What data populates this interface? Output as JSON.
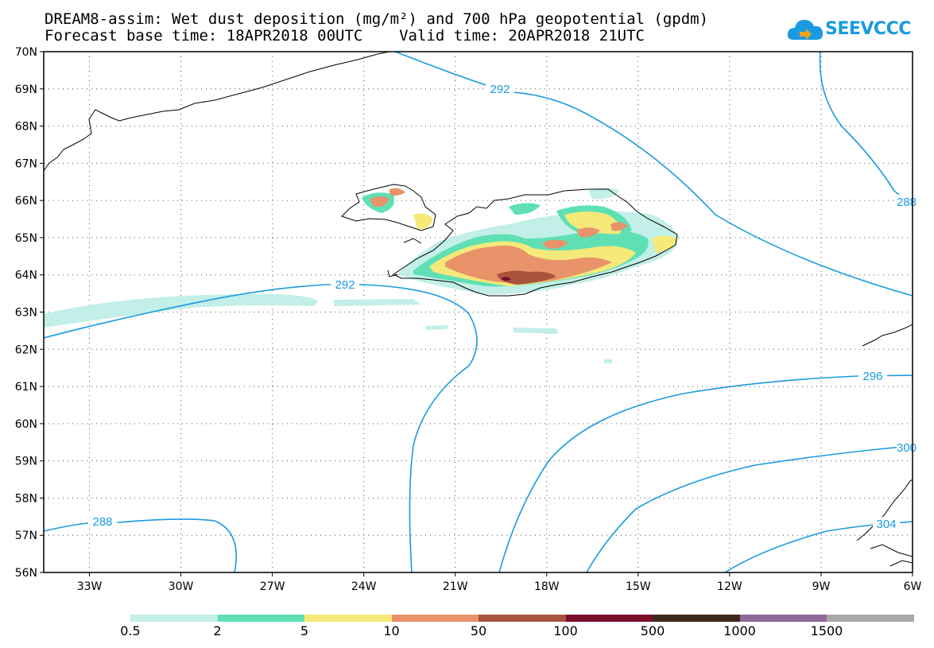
{
  "title_line1": "DREAM8-assim: Wet dust deposition (mg/m²) and 700 hPa geopotential (gpdm)",
  "title_line2": "Forecast base time: 18APR2018 00UTC    Valid time: 20APR2018 21UTC",
  "logo_text": "SEEVCCC",
  "map": {
    "lon_range": [
      -34.5,
      -6
    ],
    "lat_range": [
      56,
      70
    ],
    "lon_ticks": [
      "33W",
      "30W",
      "27W",
      "24W",
      "21W",
      "18W",
      "15W",
      "12W",
      "9W",
      "6W"
    ],
    "lat_ticks": [
      "70N",
      "69N",
      "68N",
      "67N",
      "66N",
      "65N",
      "64N",
      "63N",
      "62N",
      "61N",
      "60N",
      "59N",
      "58N",
      "57N",
      "56N"
    ],
    "gridlines": "dotted",
    "contour_color": "#1a9ae0",
    "contour_labels": [
      "292",
      "292",
      "288",
      "296",
      "300",
      "304",
      "288"
    ]
  },
  "legend": {
    "colors": [
      "#c2efe8",
      "#5ee0b4",
      "#f5e97a",
      "#e8936a",
      "#a9533e",
      "#7a0f2a",
      "#3b2a1a",
      "#8f6a9a",
      "#a8a8a8"
    ],
    "labels": [
      "0.5",
      "2",
      "5",
      "10",
      "50",
      "100",
      "500",
      "1000",
      "1500"
    ]
  }
}
